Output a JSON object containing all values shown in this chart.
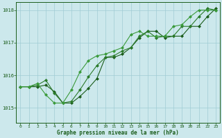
{
  "title": "Graphe pression niveau de la mer (hPa)",
  "bg_color": "#cce8ec",
  "grid_color": "#a0ccd4",
  "line_color1": "#1a5c1a",
  "line_color2": "#2a7a2a",
  "line_color3": "#3a9a3a",
  "xlim": [
    -0.5,
    23.5
  ],
  "ylim": [
    1014.55,
    1018.25
  ],
  "yticks": [
    1015,
    1016,
    1017,
    1018
  ],
  "xticks": [
    0,
    1,
    2,
    3,
    4,
    5,
    6,
    7,
    8,
    9,
    10,
    11,
    12,
    13,
    14,
    15,
    16,
    17,
    18,
    19,
    20,
    21,
    22,
    23
  ],
  "series1": [
    1015.65,
    1015.65,
    1015.65,
    1015.7,
    1015.5,
    1015.15,
    1015.15,
    1015.35,
    1015.6,
    1015.9,
    1016.55,
    1016.55,
    1016.65,
    1016.85,
    1017.15,
    1017.35,
    1017.35,
    1017.15,
    1017.2,
    1017.2,
    1017.5,
    1017.5,
    1017.8,
    1018.05
  ],
  "series2": [
    1015.65,
    1015.65,
    1015.7,
    1015.85,
    1015.45,
    1015.15,
    1015.2,
    1015.55,
    1015.95,
    1016.3,
    1016.55,
    1016.6,
    1016.75,
    1016.85,
    1017.2,
    1017.35,
    1017.15,
    1017.2,
    1017.2,
    1017.5,
    1017.5,
    1017.8,
    1018.05,
    1018.0
  ],
  "series3": [
    1015.65,
    1015.65,
    1015.75,
    1015.4,
    1015.15,
    1015.15,
    1015.55,
    1016.1,
    1016.45,
    1016.6,
    1016.65,
    1016.75,
    1016.85,
    1017.25,
    1017.35,
    1017.2,
    1017.2,
    1017.2,
    1017.5,
    1017.55,
    1017.8,
    1018.0,
    1018.0,
    1018.0
  ]
}
